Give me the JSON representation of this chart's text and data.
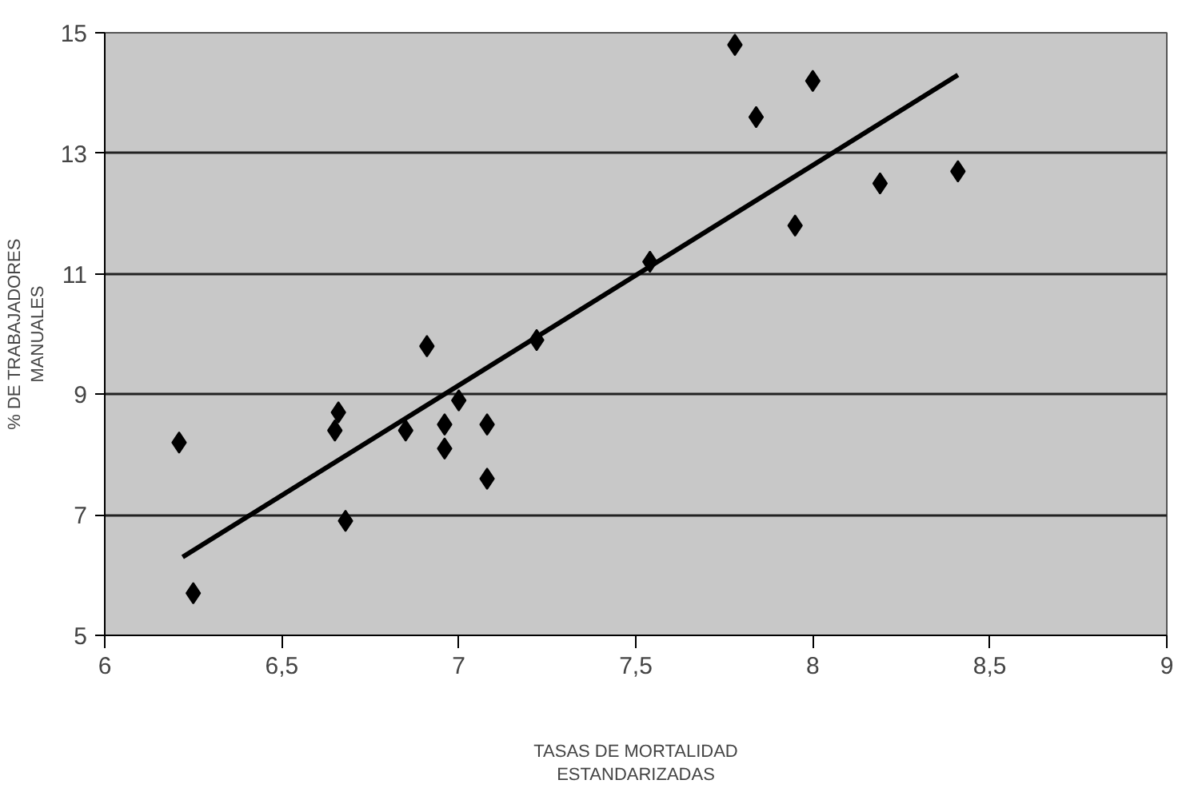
{
  "chart_data": {
    "type": "scatter",
    "xlabel": "TASAS DE MORTALIDAD\nESTANDARIZADAS",
    "ylabel": "% DE TRABAJADORES\nMANUALES",
    "grid": "y",
    "xlim": [
      6,
      9
    ],
    "xticks": [
      6,
      {
        "value": 6.5,
        "label": "6,5"
      },
      7,
      {
        "value": 7.5,
        "label": "7,5"
      },
      8,
      {
        "value": 8.5,
        "label": "8,5"
      },
      9
    ],
    "ylim": [
      5,
      15
    ],
    "yticks": [
      5,
      7,
      9,
      11,
      13,
      15
    ],
    "series": [
      {
        "marker": "diamond",
        "color": "#000000",
        "x": [
          6.21,
          6.25,
          6.65,
          6.66,
          6.68,
          6.85,
          6.91,
          6.96,
          6.96,
          7.0,
          7.08,
          7.08,
          7.22,
          7.54,
          7.78,
          7.84,
          7.95,
          8.0,
          8.19,
          8.41
        ],
        "values": [
          8.2,
          5.7,
          8.4,
          8.7,
          6.9,
          8.4,
          9.8,
          8.1,
          8.5,
          8.9,
          8.5,
          7.6,
          9.9,
          11.2,
          14.8,
          13.6,
          11.8,
          14.2,
          12.5,
          12.7
        ]
      },
      {
        "type": "line",
        "color": "#000000",
        "x": [
          6.22,
          8.41
        ],
        "values": [
          6.3,
          14.3
        ]
      }
    ]
  }
}
